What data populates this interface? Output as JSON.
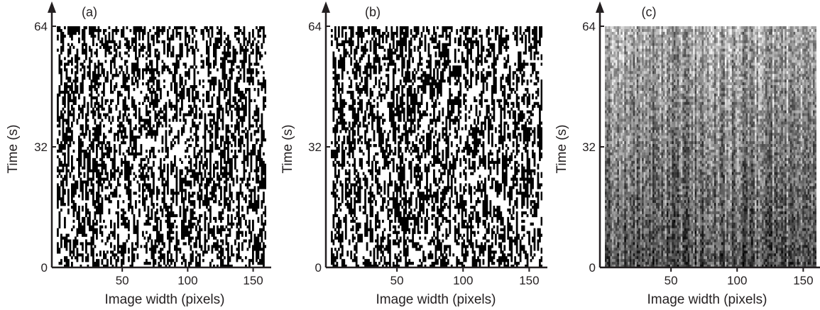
{
  "chart_data": [
    {
      "type": "heatmap",
      "panel_label": "(a)",
      "style": "binary",
      "xlabel": "Image width (pixels)",
      "ylabel": "Time (s)",
      "xlim": [
        0,
        160
      ],
      "ylim": [
        0,
        64
      ],
      "xticks": [
        50,
        100,
        150
      ],
      "yticks": [
        0,
        32,
        64
      ],
      "grid": false,
      "colors": {
        "fill": "#000000",
        "background": "#ffffff"
      }
    },
    {
      "type": "heatmap",
      "panel_label": "(b)",
      "style": "binary",
      "xlabel": "Image width (pixels)",
      "ylabel": "Time (s)",
      "xlim": [
        0,
        160
      ],
      "ylim": [
        0,
        64
      ],
      "xticks": [
        50,
        100,
        150
      ],
      "yticks": [
        0,
        32,
        64
      ],
      "grid": false,
      "colors": {
        "fill": "#000000",
        "background": "#ffffff"
      }
    },
    {
      "type": "heatmap",
      "panel_label": "(c)",
      "style": "grayscale",
      "xlabel": "Image width (pixels)",
      "ylabel": "Time (s)",
      "xlim": [
        0,
        160
      ],
      "ylim": [
        0,
        64
      ],
      "xticks": [
        50,
        100,
        150
      ],
      "yticks": [
        0,
        32,
        64
      ],
      "grid": false,
      "colors": {
        "fill": "#000000",
        "background": "#ffffff"
      }
    }
  ]
}
